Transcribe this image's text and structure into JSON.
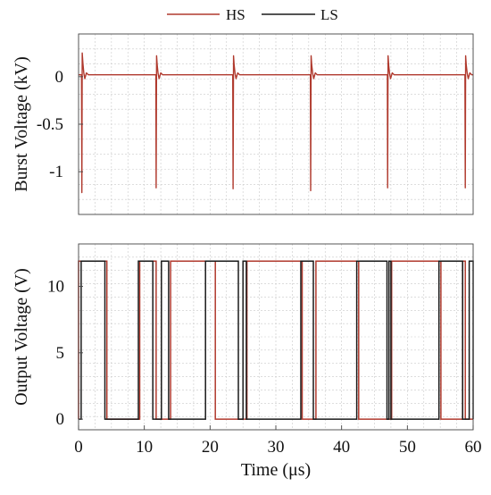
{
  "chart_data": [
    {
      "type": "line",
      "ylabel": "Burst Voltage (kV)",
      "xlim": [
        0,
        60
      ],
      "ylim": [
        -1.45,
        0.45
      ],
      "yticks": [
        0,
        -0.5,
        -1
      ],
      "ytick_labels": [
        "0",
        "-0.5",
        "-1"
      ],
      "grid": true,
      "legend": "top-center",
      "series": [
        {
          "name": "HS",
          "color": "#b03a2e",
          "baseline": 0.02,
          "bursts": [
            {
              "x": 0.5,
              "min": -1.22,
              "max": 0.25
            },
            {
              "x": 11.8,
              "min": -1.17,
              "max": 0.22
            },
            {
              "x": 23.5,
              "min": -1.18,
              "max": 0.22
            },
            {
              "x": 35.3,
              "min": -1.2,
              "max": 0.22
            },
            {
              "x": 47.0,
              "min": -1.17,
              "max": 0.22
            },
            {
              "x": 58.8,
              "min": -1.17,
              "max": 0.22
            }
          ]
        }
      ]
    },
    {
      "type": "line",
      "xlabel": "Time (μs)",
      "ylabel": "Output Voltage (V)",
      "xlim": [
        0,
        60
      ],
      "ylim": [
        -0.8,
        13.2
      ],
      "xticks": [
        0,
        10,
        20,
        30,
        40,
        50,
        60
      ],
      "xtick_labels": [
        "0",
        "10",
        "20",
        "30",
        "40",
        "50",
        "60"
      ],
      "yticks": [
        0,
        5,
        10
      ],
      "ytick_labels": [
        "0",
        "5",
        "10"
      ],
      "grid": true,
      "series": [
        {
          "name": "HS",
          "color": "#b03a2e",
          "high": 11.9,
          "high_intervals": [
            [
              0,
              4.3
            ],
            [
              9.3,
              11.8
            ],
            [
              14.0,
              20.8
            ],
            [
              25.6,
              34.0
            ],
            [
              36.1,
              42.6
            ],
            [
              47.6,
              55.1
            ],
            [
              58.4,
              58.8
            ]
          ]
        },
        {
          "name": "LS",
          "color": "#1a1a1a",
          "high": 11.9,
          "high_intervals": [
            [
              0.4,
              4.0
            ],
            [
              9.1,
              11.3
            ],
            [
              12.6,
              13.7
            ],
            [
              19.3,
              24.3
            ],
            [
              25.0,
              25.5
            ],
            [
              33.8,
              35.7
            ],
            [
              42.3,
              46.9
            ],
            [
              47.2,
              47.5
            ],
            [
              54.8,
              58.4
            ],
            [
              59.4,
              60
            ]
          ]
        }
      ]
    }
  ]
}
